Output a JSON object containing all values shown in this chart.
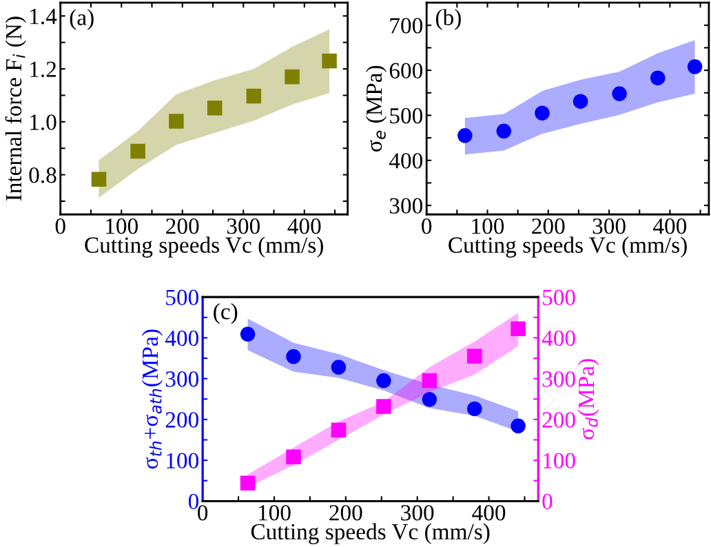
{
  "chart_data": [
    {
      "type": "scatter",
      "xlabel": "Cutting speeds Vc (mm/s)",
      "ylabel": "Internal force F$_{i}$ (N)",
      "annotations": [
        "(a)"
      ],
      "xlim": [
        0,
        471
      ],
      "ylim": [
        0.65,
        1.45
      ],
      "xticks": [
        0,
        {
          "value": 50,
          "label": null
        },
        100,
        {
          "value": 150,
          "label": null
        },
        200,
        {
          "value": 250,
          "label": null
        },
        300,
        {
          "value": 350,
          "label": null
        },
        400,
        {
          "value": 450,
          "label": null
        }
      ],
      "yticks": [
        {
          "value": 0.7,
          "label": null
        },
        0.8,
        {
          "value": 0.9,
          "label": null
        },
        {
          "value": 1.0,
          "label": "1.0"
        },
        {
          "value": 1.1,
          "label": null
        },
        1.2,
        {
          "value": 1.3,
          "label": null
        },
        1.4
      ],
      "x": [
        63,
        127,
        190,
        253,
        317,
        380,
        441
      ],
      "series": [
        {
          "color": "#808000",
          "marker": "square",
          "values": [
            0.783,
            0.889,
            1.002,
            1.052,
            1.097,
            1.17,
            1.23
          ],
          "lower": [
            0.713,
            0.822,
            0.913,
            0.958,
            1.004,
            1.065,
            1.109
          ],
          "upper": [
            0.855,
            0.965,
            1.104,
            1.157,
            1.2,
            1.283,
            1.35
          ]
        }
      ]
    },
    {
      "type": "scatter",
      "xlabel": "Cutting speeds Vc (mm/s)",
      "ylabel": "σ$_{e}$ (MPa)",
      "annotations": [
        "(b)"
      ],
      "xlim": [
        0,
        464
      ],
      "ylim": [
        280,
        750
      ],
      "xticks": [
        0,
        {
          "value": 50,
          "label": null
        },
        100,
        {
          "value": 150,
          "label": null
        },
        200,
        {
          "value": 250,
          "label": null
        },
        300,
        {
          "value": 350,
          "label": null
        },
        400,
        {
          "value": 450,
          "label": null
        }
      ],
      "yticks": [
        300,
        {
          "value": 350,
          "label": null
        },
        400,
        {
          "value": 450,
          "label": null
        },
        500,
        {
          "value": 550,
          "label": null
        },
        600,
        {
          "value": 650,
          "label": null
        },
        700
      ],
      "x": [
        63,
        127,
        190,
        253,
        317,
        380,
        441
      ],
      "series": [
        {
          "color": "#0000ff",
          "marker": "circle",
          "values": [
            455,
            465,
            505,
            531,
            548,
            583,
            608
          ],
          "lower": [
            413,
            422,
            459,
            481,
            501,
            529,
            548
          ],
          "upper": [
            494,
            503,
            554,
            579,
            597,
            638,
            667
          ]
        }
      ]
    },
    {
      "type": "scatter",
      "xlabel": "Cutting speeds Vc (mm/s)",
      "ylabel": "σ$_{th}$+σ$_{ath}$(MPa)",
      "y2label": "σ$_{d}$(MPa)",
      "annotations": [
        "(c)"
      ],
      "xlim": [
        0,
        469
      ],
      "ylim": [
        0,
        500
      ],
      "y2lim": [
        0,
        500
      ],
      "xticks": [
        0,
        {
          "value": 50,
          "label": null
        },
        100,
        {
          "value": 150,
          "label": null
        },
        200,
        {
          "value": 250,
          "label": null
        },
        300,
        {
          "value": 350,
          "label": null
        },
        400,
        {
          "value": 450,
          "label": null
        }
      ],
      "yticks": [
        0,
        {
          "value": 50,
          "label": null
        },
        100,
        {
          "value": 150,
          "label": null
        },
        200,
        {
          "value": 250,
          "label": null
        },
        300,
        {
          "value": 350,
          "label": null
        },
        400,
        {
          "value": 450,
          "label": null
        },
        500
      ],
      "y2ticks": [
        0,
        {
          "value": 50,
          "label": null
        },
        100,
        {
          "value": 150,
          "label": null
        },
        200,
        {
          "value": 250,
          "label": null
        },
        300,
        {
          "value": 350,
          "label": null
        },
        400,
        {
          "value": 450,
          "label": null
        },
        500
      ],
      "x": [
        63,
        127,
        190,
        253,
        317,
        380,
        441
      ],
      "series": [
        {
          "color": "#0000ff",
          "marker": "circle",
          "values": [
            409,
            354,
            328,
            295,
            249,
            226,
            184
          ],
          "lower": [
            370,
            317,
            302,
            271,
            228,
            209,
            170
          ],
          "upper": [
            447,
            388,
            360,
            321,
            286,
            259,
            220
          ]
        },
        {
          "color": "#ff00ff",
          "marker": "square",
          "axis": "y2",
          "values": [
            44,
            108,
            174,
            232,
            295,
            355,
            422
          ],
          "lower": [
            34,
            88,
            150,
            212,
            267,
            310,
            380
          ],
          "upper": [
            65,
            131,
            195,
            243,
            328,
            391,
            461
          ]
        }
      ]
    }
  ]
}
